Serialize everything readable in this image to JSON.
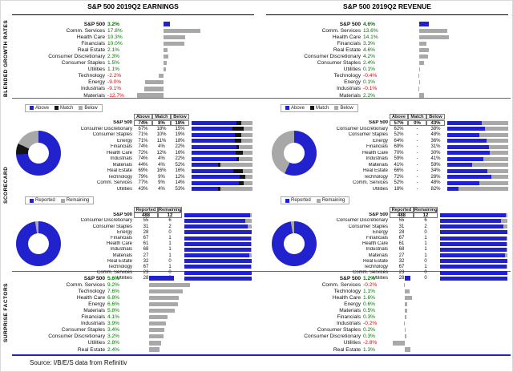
{
  "meta": {
    "source": "Source: I/B/E/S data from Refinitiv"
  },
  "titles": {
    "earnings": "S&P 500 2019Q2 EARNINGS",
    "revenue": "S&P 500 2019Q2 REVENUE"
  },
  "section_labels": {
    "growth": "BLENDED GROWTH RATES",
    "scorecard": "SCORECARD",
    "surprise": "SURPRISE FACTORS"
  },
  "colors": {
    "blue": "#2121cd",
    "black": "#141414",
    "gray": "#a8a8a8",
    "green": "#007700",
    "red": "#e60000"
  },
  "legend_abm": [
    "Above",
    "Match",
    "Below"
  ],
  "legend_rr": [
    "Reported",
    "Remaining"
  ],
  "chart_data": [
    {
      "id": "earnings_growth",
      "type": "bar",
      "title": "Blended growth rates — S&P 500 2019Q2 Earnings",
      "categories": [
        "S&P 500",
        "Comm. Services",
        "Health Care",
        "Financials",
        "Real Estate",
        "Consumer Discretionary",
        "Consumer Staples",
        "Utilities",
        "Technology",
        "Energy",
        "Industrials",
        "Materials"
      ],
      "values": [
        3.2,
        17.8,
        10.3,
        10.0,
        2.1,
        2.3,
        1.5,
        1.1,
        -2.2,
        -9.0,
        -9.1,
        -12.7
      ],
      "labels": [
        "3.2%",
        "17.8%",
        "10.3%",
        "10.0%",
        "2.1%",
        "2.3%",
        "1.5%",
        "1.1%",
        "-2.2%",
        "-9.0%",
        "-9.1%",
        "-12.7%"
      ]
    },
    {
      "id": "revenue_growth",
      "type": "bar",
      "title": "Blended growth rates — S&P 500 2019Q2 Revenue",
      "categories": [
        "S&P 500",
        "Comm. Services",
        "Health Care",
        "Financials",
        "Real Estate",
        "Consumer Discretionary",
        "Consumer Staples",
        "Utilities",
        "Technology",
        "Energy",
        "Industrials",
        "Materials"
      ],
      "values": [
        4.6,
        13.6,
        14.1,
        3.3,
        4.6,
        4.2,
        2.4,
        0.1,
        -0.4,
        0.1,
        -0.1,
        2.2
      ],
      "labels": [
        "4.6%",
        "13.6%",
        "14.1%",
        "3.3%",
        "4.6%",
        "4.2%",
        "2.4%",
        "0.1%",
        "-0.4%",
        "0.1%",
        "-0.1%",
        "2.2%"
      ]
    },
    {
      "id": "earnings_scorecard",
      "type": "stacked-bar",
      "title": "Earnings scorecard — Above / Match / Below",
      "categories": [
        "S&P 500",
        "Consumer Discretionary",
        "Consumer Staples",
        "Energy",
        "Financials",
        "Health Care",
        "Industrials",
        "Materials",
        "Real Estate",
        "Technology",
        "Comm. Services",
        "Utilities"
      ],
      "series": [
        {
          "name": "Above",
          "values": [
            74,
            67,
            71,
            71,
            74,
            72,
            74,
            44,
            69,
            79,
            77,
            43
          ]
        },
        {
          "name": "Match",
          "values": [
            8,
            18,
            10,
            11,
            4,
            12,
            4,
            4,
            16,
            9,
            9,
            4
          ]
        },
        {
          "name": "Below",
          "values": [
            18,
            15,
            19,
            18,
            22,
            16,
            22,
            52,
            16,
            12,
            14,
            53
          ]
        }
      ],
      "cell_text": [
        [
          "74%",
          "8%",
          "18%"
        ],
        [
          "67%",
          "18%",
          "15%"
        ],
        [
          "71%",
          "10%",
          "19%"
        ],
        [
          "71%",
          "11%",
          "18%"
        ],
        [
          "74%",
          "4%",
          "22%"
        ],
        [
          "72%",
          "12%",
          "16%"
        ],
        [
          "74%",
          "4%",
          "22%"
        ],
        [
          "44%",
          "4%",
          "52%"
        ],
        [
          "69%",
          "16%",
          "16%"
        ],
        [
          "79%",
          "9%",
          "12%"
        ],
        [
          "77%",
          "9%",
          "14%"
        ],
        [
          "43%",
          "4%",
          "53%"
        ]
      ]
    },
    {
      "id": "revenue_scorecard",
      "type": "stacked-bar",
      "title": "Revenue scorecard — Above / Match / Below",
      "categories": [
        "S&P 500",
        "Consumer Discretionary",
        "Consumer Staples",
        "Energy",
        "Financials",
        "Health Care",
        "Industrials",
        "Materials",
        "Real Estate",
        "Technology",
        "Comm. Services",
        "Utilities"
      ],
      "series": [
        {
          "name": "Above",
          "values": [
            57,
            62,
            52,
            64,
            69,
            70,
            59,
            41,
            66,
            72,
            52,
            18
          ]
        },
        {
          "name": "Match",
          "values": [
            0,
            0,
            0,
            0,
            0,
            0,
            0,
            0,
            0,
            0,
            0,
            0
          ]
        },
        {
          "name": "Below",
          "values": [
            43,
            38,
            48,
            36,
            31,
            30,
            41,
            59,
            34,
            28,
            48,
            82
          ]
        }
      ],
      "cell_text": [
        [
          "57%",
          "0%",
          "43%"
        ],
        [
          "62%",
          "-",
          "38%"
        ],
        [
          "52%",
          "-",
          "48%"
        ],
        [
          "64%",
          "-",
          "36%"
        ],
        [
          "69%",
          "-",
          "31%"
        ],
        [
          "70%",
          "-",
          "30%"
        ],
        [
          "59%",
          "-",
          "41%"
        ],
        [
          "41%",
          "-",
          "59%"
        ],
        [
          "66%",
          "-",
          "34%"
        ],
        [
          "72%",
          "-",
          "28%"
        ],
        [
          "52%",
          "-",
          "48%"
        ],
        [
          "18%",
          "-",
          "82%"
        ]
      ]
    },
    {
      "id": "earnings_reported",
      "type": "stacked-bar",
      "title": "Earnings scorecard — Reported vs Remaining",
      "categories": [
        "S&P 500",
        "Consumer Discretionary",
        "Consumer Staples",
        "Energy",
        "Financials",
        "Health Care",
        "Industrials",
        "Materials",
        "Real Estate",
        "Technology",
        "Comm. Services",
        "Utilities"
      ],
      "series": [
        {
          "name": "Reported",
          "values": [
            488,
            55,
            31,
            28,
            67,
            61,
            68,
            27,
            32,
            67,
            23,
            28
          ]
        },
        {
          "name": "Remaining",
          "values": [
            12,
            6,
            2,
            0,
            1,
            1,
            1,
            1,
            0,
            1,
            0,
            0
          ]
        }
      ],
      "cell_text": [
        [
          "488",
          "12"
        ],
        [
          "55",
          "6"
        ],
        [
          "31",
          "2"
        ],
        [
          "28",
          "0"
        ],
        [
          "67",
          "1"
        ],
        [
          "61",
          "1"
        ],
        [
          "68",
          "1"
        ],
        [
          "27",
          "1"
        ],
        [
          "32",
          "0"
        ],
        [
          "67",
          "1"
        ],
        [
          "23",
          "0"
        ],
        [
          "28",
          "0"
        ]
      ]
    },
    {
      "id": "revenue_reported",
      "type": "stacked-bar",
      "title": "Revenue scorecard — Reported vs Remaining",
      "categories": [
        "S&P 500",
        "Consumer Discretionary",
        "Consumer Staples",
        "Energy",
        "Financials",
        "Health Care",
        "Industrials",
        "Materials",
        "Real Estate",
        "Technology",
        "Comm. Services",
        "Utilities"
      ],
      "series": [
        {
          "name": "Reported",
          "values": [
            488,
            55,
            31,
            28,
            67,
            61,
            68,
            27,
            32,
            67,
            23,
            28
          ]
        },
        {
          "name": "Remaining",
          "values": [
            12,
            6,
            2,
            0,
            1,
            1,
            1,
            1,
            0,
            1,
            0,
            0
          ]
        }
      ],
      "cell_text": [
        [
          "488",
          "12"
        ],
        [
          "55",
          "6"
        ],
        [
          "31",
          "2"
        ],
        [
          "28",
          "0"
        ],
        [
          "67",
          "1"
        ],
        [
          "61",
          "1"
        ],
        [
          "68",
          "1"
        ],
        [
          "27",
          "1"
        ],
        [
          "32",
          "0"
        ],
        [
          "67",
          "1"
        ],
        [
          "23",
          "0"
        ],
        [
          "28",
          "0"
        ]
      ]
    },
    {
      "id": "earnings_surprise",
      "type": "bar",
      "title": "Surprise factors — Earnings",
      "categories": [
        "S&P 500",
        "Comm. Services",
        "Technology",
        "Health Care",
        "Energy",
        "Materials",
        "Financials",
        "Industrials",
        "Consumer Staples",
        "Consumer Discretionary",
        "Utilities",
        "Real Estate"
      ],
      "values": [
        5.6,
        9.2,
        7.6,
        6.8,
        6.6,
        5.8,
        4.1,
        3.9,
        3.4,
        3.2,
        2.8,
        2.4
      ],
      "labels": [
        "5.6%",
        "9.2%",
        "7.6%",
        "6.8%",
        "6.6%",
        "5.8%",
        "4.1%",
        "3.9%",
        "3.4%",
        "3.2%",
        "2.8%",
        "2.4%"
      ]
    },
    {
      "id": "revenue_surprise",
      "type": "bar",
      "title": "Surprise factors — Revenue",
      "categories": [
        "S&P 500",
        "Comm. Services",
        "Technology",
        "Health Care",
        "Energy",
        "Materials",
        "Financials",
        "Industrials",
        "Consumer Staples",
        "Consumer Discretionary",
        "Utilities",
        "Real Estate"
      ],
      "values": [
        1.2,
        -0.2,
        1.1,
        1.6,
        0.6,
        0.5,
        0.3,
        -0.2,
        0.2,
        0.3,
        -2.8,
        1.3
      ],
      "labels": [
        "1.2%",
        "-0.2%",
        "1.1%",
        "1.6%",
        "0.6%",
        "0.5%",
        "0.3%",
        "-0.2%",
        "0.2%",
        "0.3%",
        "-2.8%",
        "1.3%"
      ]
    }
  ]
}
